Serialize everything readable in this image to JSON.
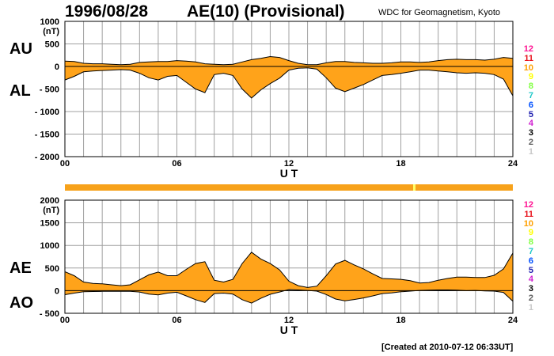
{
  "header": {
    "date": "1996/08/28",
    "title": "AE(10) (Provisional)",
    "org": "WDC for Geomagnetism, Kyoto",
    "created": "[Created at 2010-07-12 06:33UT]"
  },
  "labels": {
    "au": "AU",
    "al": "AL",
    "ae": "AE",
    "ao": "AO"
  },
  "colors": {
    "fill": "#ffa31a",
    "bar": "#f7a21b",
    "line": "#000000",
    "grid": "#a0a0a0"
  },
  "station_levels": {
    "labels": [
      "12",
      "11",
      "10",
      "9",
      "8",
      "7",
      "6",
      "5",
      "4",
      "3",
      "2",
      "1"
    ],
    "colors": [
      "#ff1493",
      "#e8141e",
      "#ffa000",
      "#ffff00",
      "#80ff40",
      "#20c8c8",
      "#0050ff",
      "#2020b0",
      "#d020d0",
      "#000000",
      "#606060",
      "#c8c8c8"
    ]
  },
  "chart_data": [
    {
      "type": "area",
      "name": "AU/AL",
      "xlabel": "U T",
      "ylabel": "(nT)",
      "xlim": [
        0,
        24
      ],
      "ylim": [
        -2000,
        1000
      ],
      "xticks": [
        "00",
        "06",
        "12",
        "18",
        "24"
      ],
      "yticks": [
        "1000",
        "500",
        "0",
        "- 500",
        "- 1000",
        "- 1500",
        "- 2000"
      ],
      "ytick_values": [
        1000,
        500,
        0,
        -500,
        -1000,
        -1500,
        -2000
      ],
      "grid": true,
      "x": [
        0,
        0.5,
        1,
        1.5,
        2,
        2.5,
        3,
        3.5,
        4,
        4.5,
        5,
        5.5,
        6,
        6.5,
        7,
        7.5,
        8,
        8.5,
        9,
        9.5,
        10,
        10.5,
        11,
        11.5,
        12,
        12.5,
        13,
        13.5,
        14,
        14.5,
        15,
        15.5,
        16,
        16.5,
        17,
        17.5,
        18,
        18.5,
        19,
        19.5,
        20,
        20.5,
        21,
        21.5,
        22,
        22.5,
        23,
        23.5,
        24
      ],
      "series": [
        {
          "name": "AU",
          "values": [
            120,
            110,
            70,
            60,
            60,
            50,
            40,
            50,
            90,
            100,
            110,
            110,
            130,
            120,
            100,
            60,
            50,
            40,
            50,
            100,
            150,
            180,
            220,
            200,
            130,
            70,
            40,
            40,
            80,
            110,
            110,
            90,
            80,
            70,
            70,
            80,
            100,
            100,
            90,
            100,
            130,
            150,
            160,
            150,
            150,
            140,
            160,
            200,
            180
          ]
        },
        {
          "name": "AL",
          "values": [
            -300,
            -220,
            -120,
            -100,
            -90,
            -80,
            -70,
            -80,
            -150,
            -250,
            -300,
            -220,
            -200,
            -350,
            -500,
            -580,
            -180,
            -150,
            -200,
            -500,
            -700,
            -520,
            -380,
            -260,
            -80,
            -40,
            -30,
            -60,
            -250,
            -480,
            -560,
            -480,
            -400,
            -300,
            -200,
            -180,
            -150,
            -120,
            -80,
            -80,
            -100,
            -120,
            -140,
            -150,
            -140,
            -150,
            -180,
            -280,
            -650
          ]
        }
      ]
    },
    {
      "type": "area",
      "name": "AE/AO",
      "xlabel": "U T",
      "ylabel": "(nT)",
      "xlim": [
        0,
        24
      ],
      "ylim": [
        -500,
        2000
      ],
      "xticks": [
        "00",
        "06",
        "12",
        "18",
        "24"
      ],
      "yticks": [
        "2000",
        "1500",
        "1000",
        "500",
        "0",
        "- 500"
      ],
      "ytick_values": [
        2000,
        1500,
        1000,
        500,
        0,
        -500
      ],
      "grid": true,
      "x": [
        0,
        0.5,
        1,
        1.5,
        2,
        2.5,
        3,
        3.5,
        4,
        4.5,
        5,
        5.5,
        6,
        6.5,
        7,
        7.5,
        8,
        8.5,
        9,
        9.5,
        10,
        10.5,
        11,
        11.5,
        12,
        12.5,
        13,
        13.5,
        14,
        14.5,
        15,
        15.5,
        16,
        16.5,
        17,
        17.5,
        18,
        18.5,
        19,
        19.5,
        20,
        20.5,
        21,
        21.5,
        22,
        22.5,
        23,
        23.5,
        24
      ],
      "series": [
        {
          "name": "AE",
          "values": [
            420,
            330,
            190,
            160,
            150,
            130,
            110,
            130,
            240,
            350,
            410,
            330,
            330,
            470,
            600,
            640,
            230,
            190,
            250,
            600,
            850,
            700,
            600,
            460,
            210,
            110,
            70,
            100,
            330,
            590,
            670,
            570,
            480,
            370,
            270,
            260,
            250,
            220,
            170,
            180,
            230,
            270,
            300,
            300,
            290,
            290,
            340,
            480,
            830
          ]
        },
        {
          "name": "AO",
          "values": [
            -90,
            -55,
            -25,
            -20,
            -15,
            -15,
            -15,
            -15,
            -30,
            -75,
            -95,
            -55,
            -35,
            -115,
            -200,
            -260,
            -65,
            -55,
            -75,
            -200,
            -275,
            -170,
            -80,
            -30,
            25,
            15,
            5,
            -10,
            -85,
            -185,
            -225,
            -195,
            -160,
            -115,
            -65,
            -50,
            -25,
            -10,
            5,
            10,
            15,
            15,
            10,
            0,
            5,
            -5,
            -10,
            -40,
            -235
          ]
        }
      ]
    }
  ]
}
